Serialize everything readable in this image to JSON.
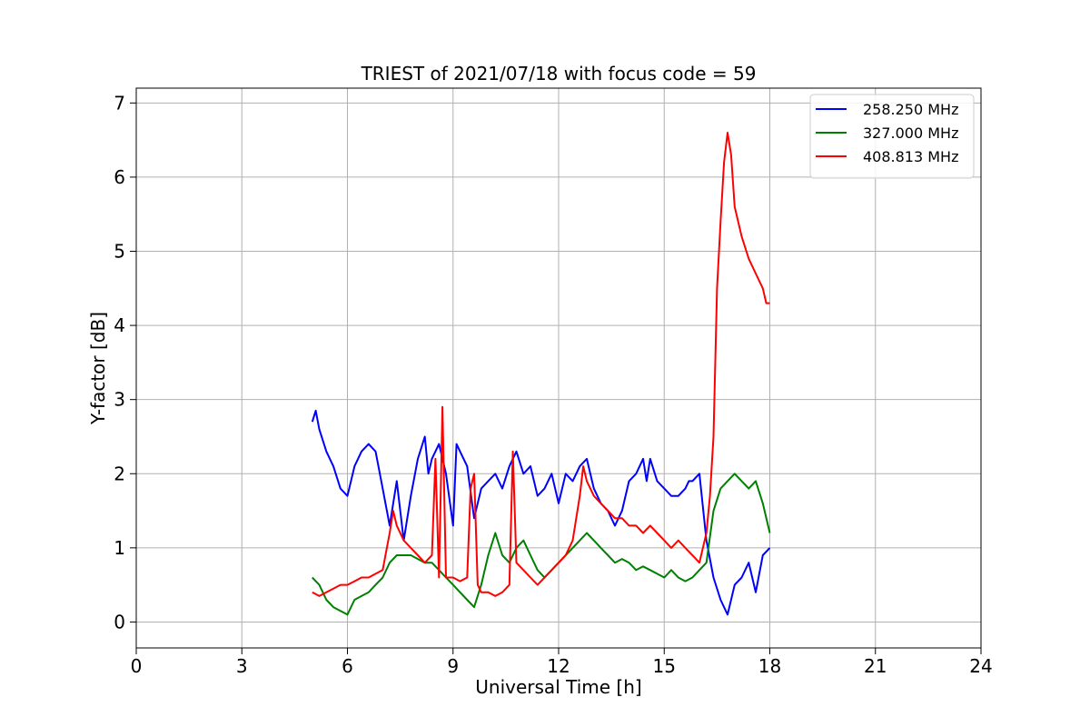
{
  "chart_data": {
    "type": "line",
    "title": "TRIEST of 2021/07/18 with focus code = 59",
    "xlabel": "Universal Time [h]",
    "ylabel": "Y-factor [dB]",
    "xlim": [
      0,
      24
    ],
    "ylim": [
      -0.35,
      7.2
    ],
    "xticks": [
      0,
      3,
      6,
      9,
      12,
      15,
      18,
      21,
      24
    ],
    "yticks": [
      0,
      1,
      2,
      3,
      4,
      5,
      6,
      7
    ],
    "grid": true,
    "legend_position": "top-right",
    "series": [
      {
        "name": "258.250 MHz",
        "color": "#0000ff",
        "x": [
          5.0,
          5.1,
          5.2,
          5.4,
          5.6,
          5.8,
          6.0,
          6.2,
          6.4,
          6.6,
          6.8,
          7.0,
          7.2,
          7.4,
          7.6,
          7.8,
          8.0,
          8.2,
          8.3,
          8.4,
          8.6,
          8.8,
          9.0,
          9.1,
          9.2,
          9.4,
          9.6,
          9.8,
          10.0,
          10.2,
          10.4,
          10.6,
          10.8,
          11.0,
          11.2,
          11.4,
          11.6,
          11.8,
          12.0,
          12.2,
          12.4,
          12.6,
          12.8,
          13.0,
          13.2,
          13.4,
          13.6,
          13.8,
          14.0,
          14.2,
          14.4,
          14.5,
          14.6,
          14.8,
          15.0,
          15.2,
          15.4,
          15.6,
          15.7,
          15.8,
          16.0,
          16.2,
          16.4,
          16.6,
          16.8,
          17.0,
          17.2,
          17.4,
          17.6,
          17.8,
          18.0
        ],
        "y": [
          2.7,
          2.85,
          2.6,
          2.3,
          2.1,
          1.8,
          1.7,
          2.1,
          2.3,
          2.4,
          2.3,
          1.8,
          1.3,
          1.9,
          1.1,
          1.7,
          2.2,
          2.5,
          2.0,
          2.2,
          2.4,
          2.0,
          1.3,
          2.4,
          2.3,
          2.1,
          1.4,
          1.8,
          1.9,
          2.0,
          1.8,
          2.1,
          2.3,
          2.0,
          2.1,
          1.7,
          1.8,
          2.0,
          1.6,
          2.0,
          1.9,
          2.1,
          2.2,
          1.8,
          1.6,
          1.5,
          1.3,
          1.5,
          1.9,
          2.0,
          2.2,
          1.9,
          2.2,
          1.9,
          1.8,
          1.7,
          1.7,
          1.8,
          1.9,
          1.9,
          2.0,
          1.1,
          0.6,
          0.3,
          0.1,
          0.5,
          0.6,
          0.8,
          0.4,
          0.9,
          1.0
        ]
      },
      {
        "name": "327.000 MHz",
        "color": "#008000",
        "x": [
          5.0,
          5.2,
          5.4,
          5.6,
          5.8,
          6.0,
          6.2,
          6.4,
          6.6,
          6.8,
          7.0,
          7.2,
          7.4,
          7.6,
          7.8,
          8.0,
          8.2,
          8.4,
          8.6,
          8.8,
          9.0,
          9.2,
          9.4,
          9.6,
          9.8,
          10.0,
          10.2,
          10.4,
          10.6,
          10.8,
          11.0,
          11.2,
          11.4,
          11.6,
          11.8,
          12.0,
          12.2,
          12.4,
          12.6,
          12.8,
          13.0,
          13.2,
          13.4,
          13.6,
          13.8,
          14.0,
          14.2,
          14.4,
          14.6,
          14.8,
          15.0,
          15.2,
          15.4,
          15.6,
          15.8,
          16.0,
          16.2,
          16.4,
          16.6,
          16.8,
          17.0,
          17.2,
          17.4,
          17.6,
          17.8,
          18.0
        ],
        "y": [
          0.6,
          0.5,
          0.3,
          0.2,
          0.15,
          0.1,
          0.3,
          0.35,
          0.4,
          0.5,
          0.6,
          0.8,
          0.9,
          0.9,
          0.9,
          0.85,
          0.8,
          0.8,
          0.7,
          0.6,
          0.5,
          0.4,
          0.3,
          0.2,
          0.5,
          0.9,
          1.2,
          0.9,
          0.8,
          1.0,
          1.1,
          0.9,
          0.7,
          0.6,
          0.7,
          0.8,
          0.9,
          1.0,
          1.1,
          1.2,
          1.1,
          1.0,
          0.9,
          0.8,
          0.85,
          0.8,
          0.7,
          0.75,
          0.7,
          0.65,
          0.6,
          0.7,
          0.6,
          0.55,
          0.6,
          0.7,
          0.8,
          1.5,
          1.8,
          1.9,
          2.0,
          1.9,
          1.8,
          1.9,
          1.6,
          1.2
        ]
      },
      {
        "name": "408.813 MHz",
        "color": "#ff0000",
        "x": [
          5.0,
          5.2,
          5.4,
          5.6,
          5.8,
          6.0,
          6.2,
          6.4,
          6.6,
          6.8,
          7.0,
          7.2,
          7.3,
          7.4,
          7.6,
          7.8,
          8.0,
          8.2,
          8.4,
          8.5,
          8.6,
          8.7,
          8.8,
          9.0,
          9.2,
          9.4,
          9.5,
          9.6,
          9.7,
          9.8,
          10.0,
          10.2,
          10.4,
          10.6,
          10.7,
          10.8,
          11.0,
          11.2,
          11.4,
          11.6,
          11.8,
          12.0,
          12.2,
          12.4,
          12.6,
          12.7,
          12.8,
          13.0,
          13.2,
          13.4,
          13.6,
          13.8,
          14.0,
          14.2,
          14.4,
          14.6,
          14.8,
          15.0,
          15.2,
          15.4,
          15.6,
          15.8,
          16.0,
          16.2,
          16.3,
          16.4,
          16.5,
          16.6,
          16.7,
          16.8,
          16.9,
          17.0,
          17.2,
          17.4,
          17.6,
          17.8,
          17.9,
          18.0
        ],
        "y": [
          0.4,
          0.35,
          0.4,
          0.45,
          0.5,
          0.5,
          0.55,
          0.6,
          0.6,
          0.65,
          0.7,
          1.2,
          1.5,
          1.3,
          1.1,
          1.0,
          0.9,
          0.8,
          0.9,
          2.2,
          0.6,
          2.9,
          0.6,
          0.6,
          0.55,
          0.6,
          1.8,
          2.0,
          0.5,
          0.4,
          0.4,
          0.35,
          0.4,
          0.5,
          2.3,
          0.8,
          0.7,
          0.6,
          0.5,
          0.6,
          0.7,
          0.8,
          0.9,
          1.1,
          1.7,
          2.1,
          1.9,
          1.7,
          1.6,
          1.5,
          1.4,
          1.4,
          1.3,
          1.3,
          1.2,
          1.3,
          1.2,
          1.1,
          1.0,
          1.1,
          1.0,
          0.9,
          0.8,
          1.2,
          1.7,
          2.5,
          4.5,
          5.4,
          6.2,
          6.6,
          6.3,
          5.6,
          5.2,
          4.9,
          4.7,
          4.5,
          4.3,
          4.3
        ]
      }
    ]
  }
}
